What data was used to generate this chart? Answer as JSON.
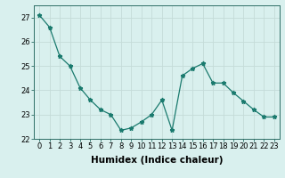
{
  "x": [
    0,
    1,
    2,
    3,
    4,
    5,
    6,
    7,
    8,
    9,
    10,
    11,
    12,
    13,
    14,
    15,
    16,
    17,
    18,
    19,
    20,
    21,
    22,
    23
  ],
  "y": [
    27.1,
    26.6,
    25.4,
    25.0,
    24.1,
    23.6,
    23.2,
    23.0,
    22.35,
    22.45,
    22.7,
    23.0,
    23.6,
    22.35,
    24.6,
    24.9,
    25.1,
    24.3,
    24.3,
    23.9,
    23.55,
    23.2,
    22.9,
    22.9
  ],
  "xlabel": "Humidex (Indice chaleur)",
  "ylim": [
    22,
    27.5
  ],
  "xlim": [
    -0.5,
    23.5
  ],
  "yticks": [
    22,
    23,
    24,
    25,
    26,
    27
  ],
  "xticks": [
    0,
    1,
    2,
    3,
    4,
    5,
    6,
    7,
    8,
    9,
    10,
    11,
    12,
    13,
    14,
    15,
    16,
    17,
    18,
    19,
    20,
    21,
    22,
    23
  ],
  "line_color": "#1a7a6e",
  "marker": "*",
  "marker_size": 3.5,
  "bg_color": "#d9f0ee",
  "grid_color": "#c4dbd8",
  "tick_fontsize": 6,
  "xlabel_fontsize": 7.5,
  "spine_color": "#2e6e66"
}
